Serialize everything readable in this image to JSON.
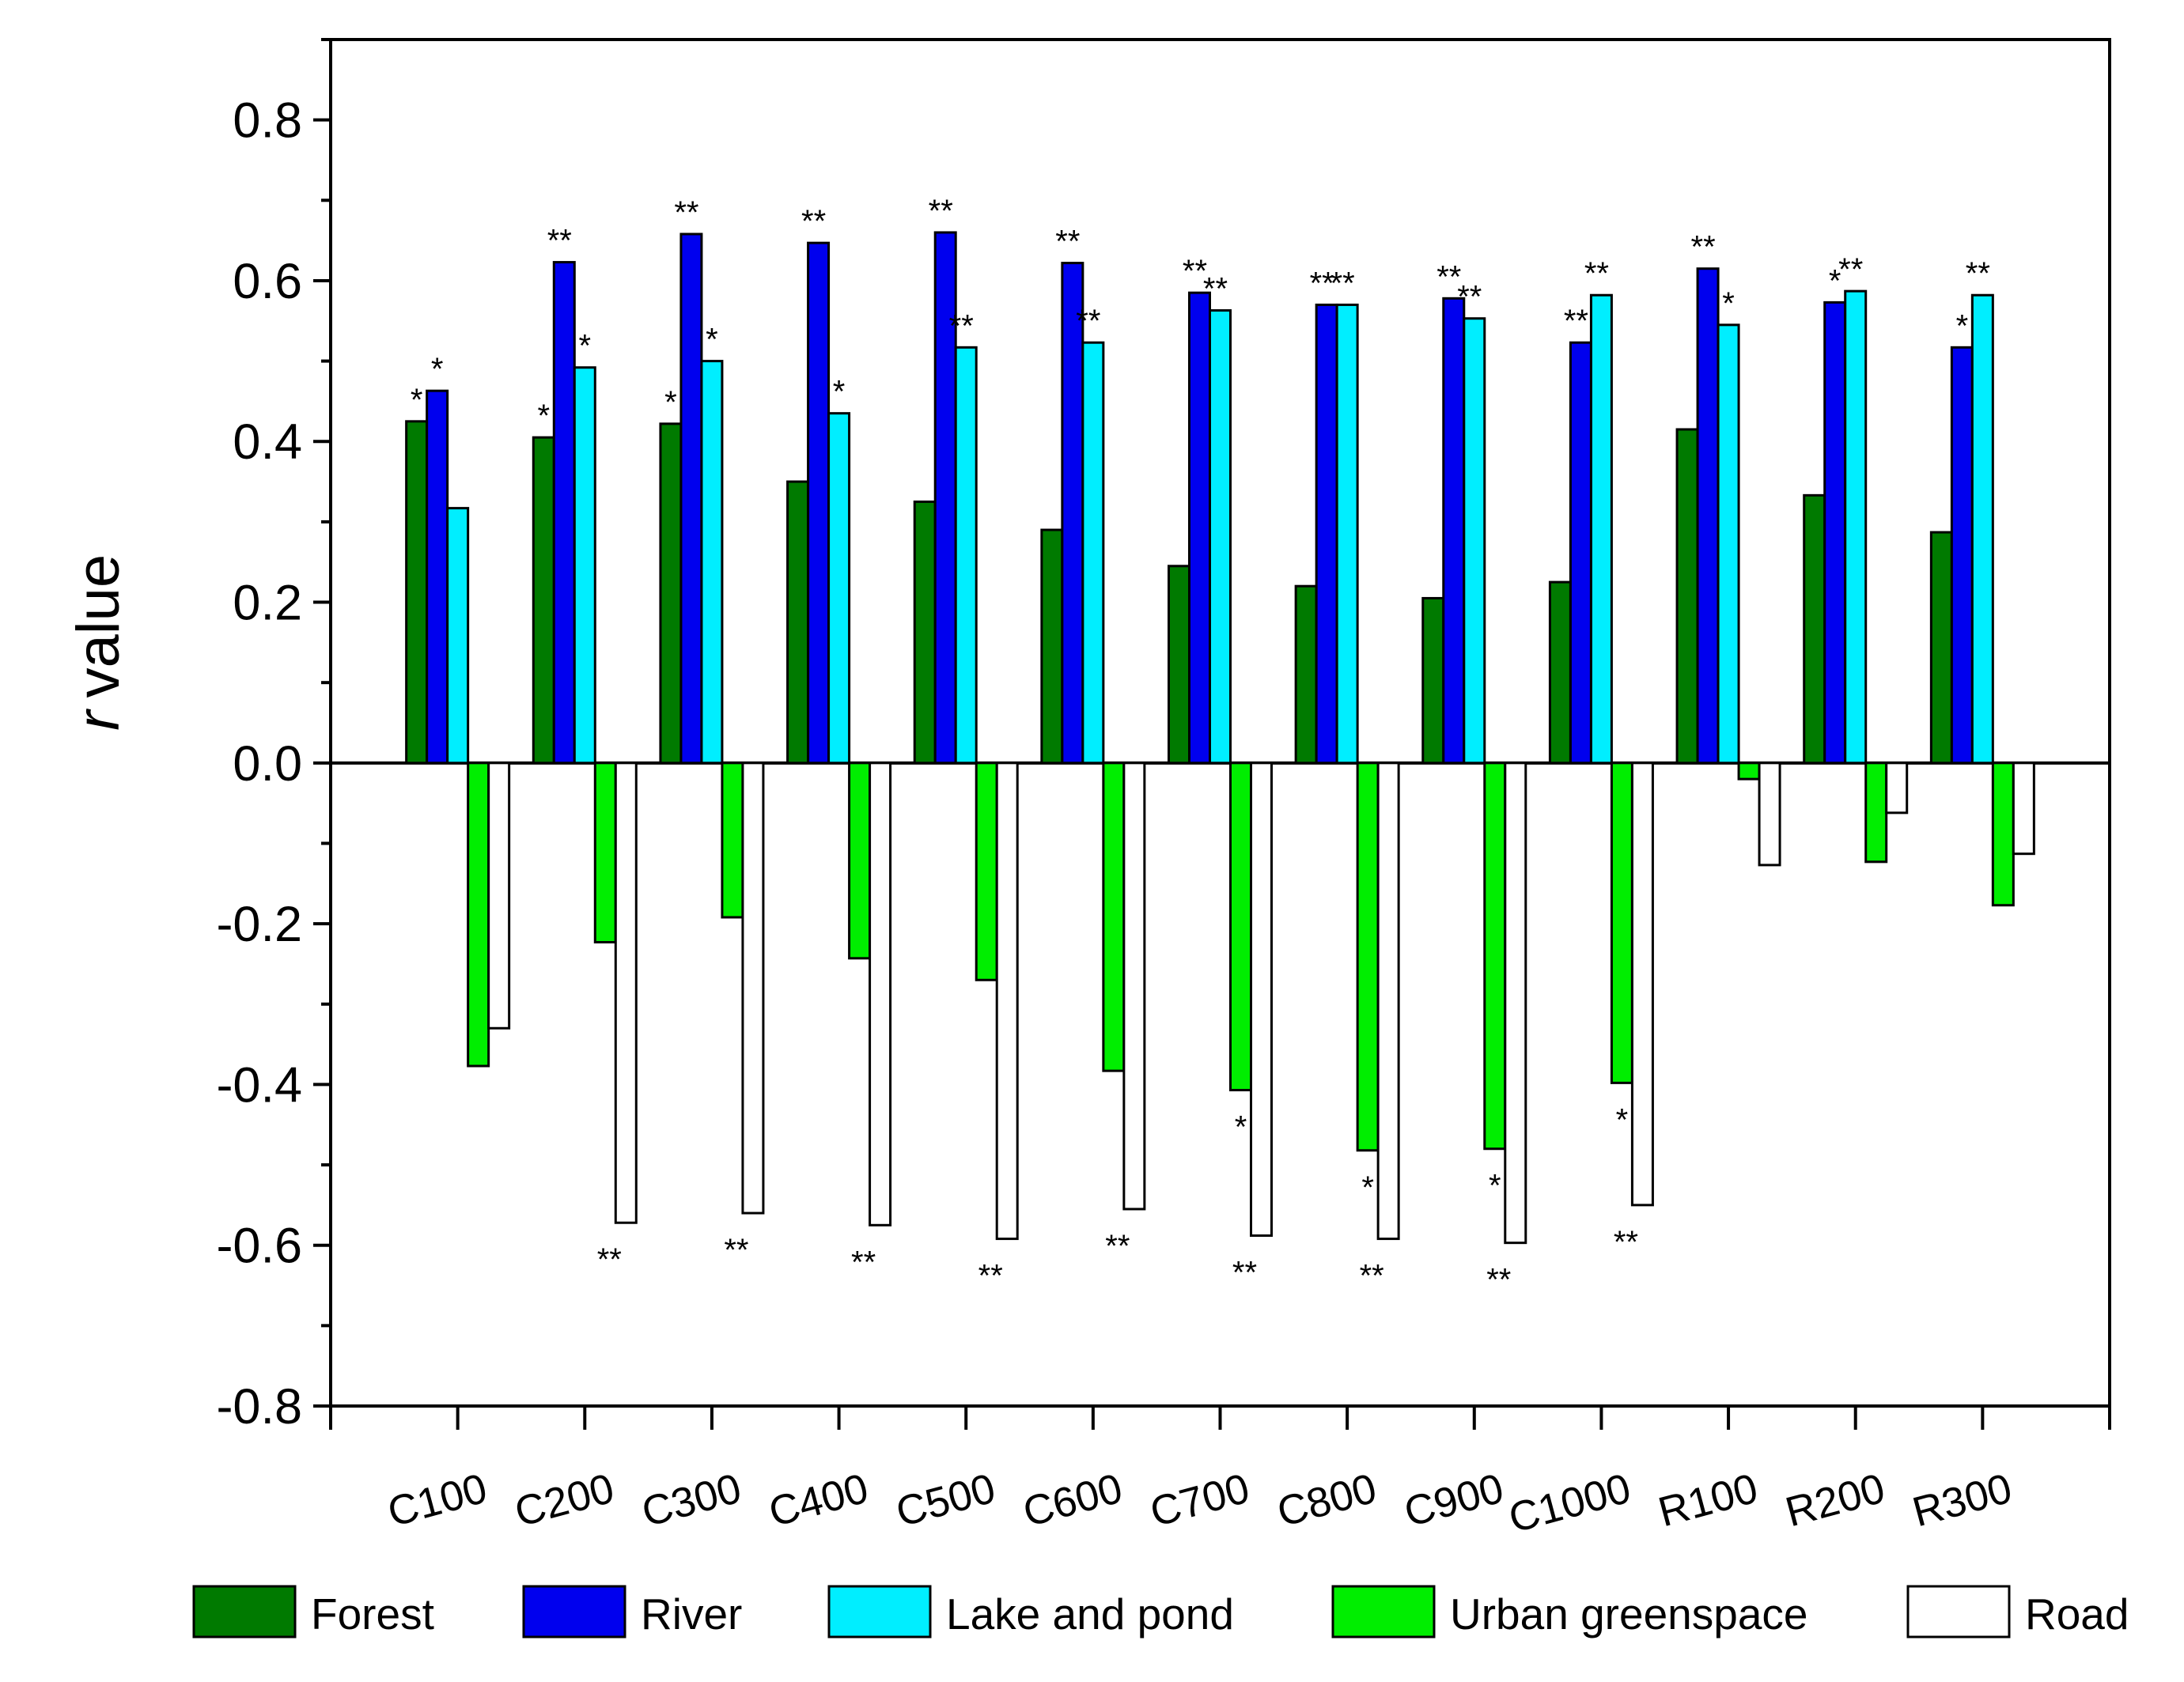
{
  "chart_data": {
    "type": "bar",
    "title": "",
    "xlabel": "",
    "ylabel": "value",
    "ylabel_italic_prefix": "r",
    "ylim": [
      -0.8,
      0.9
    ],
    "yticks": [
      "0.8",
      "0.6",
      "0.4",
      "0.2",
      "0.0",
      "-0.2",
      "-0.4",
      "-0.6",
      "-0.8"
    ],
    "ytick_values": [
      0.8,
      0.6,
      0.4,
      0.2,
      0.0,
      -0.2,
      -0.4,
      -0.6,
      -0.8
    ],
    "categories": [
      "C100",
      "C200",
      "C300",
      "C400",
      "C500",
      "C600",
      "C700",
      "C800",
      "C900",
      "C1000",
      "R100",
      "R200",
      "R300"
    ],
    "series": [
      {
        "name": "Forest",
        "color": "#007a00",
        "values": [
          0.425,
          0.405,
          0.422,
          0.35,
          0.325,
          0.29,
          0.245,
          0.22,
          0.205,
          0.225,
          0.415,
          0.333,
          0.287
        ],
        "marks": [
          "*",
          "*",
          "*",
          "",
          "",
          "",
          "",
          "",
          "",
          "",
          "",
          "",
          ""
        ]
      },
      {
        "name": "River",
        "color": "#0000ee",
        "values": [
          0.463,
          0.623,
          0.658,
          0.647,
          0.66,
          0.622,
          0.585,
          0.57,
          0.578,
          0.523,
          0.615,
          0.573,
          0.517
        ],
        "marks": [
          "*",
          "**",
          "**",
          "**",
          "**",
          "**",
          "**",
          "**",
          "**",
          "**",
          "**",
          "*",
          "*"
        ]
      },
      {
        "name": "Lake and pond",
        "color": "#00eeff",
        "values": [
          0.317,
          0.492,
          0.5,
          0.435,
          0.517,
          0.523,
          0.563,
          0.57,
          0.553,
          0.582,
          0.545,
          0.587,
          0.582
        ],
        "marks": [
          "",
          "*",
          "*",
          "*",
          "**",
          "**",
          "**",
          "**",
          "**",
          "**",
          "*",
          "**",
          "**"
        ]
      },
      {
        "name": "Urban greenspace",
        "color": "#00ee00",
        "values": [
          -0.377,
          -0.223,
          -0.192,
          -0.243,
          -0.27,
          -0.383,
          -0.407,
          -0.482,
          -0.48,
          -0.398,
          -0.02,
          -0.123,
          -0.177
        ],
        "marks": [
          "",
          "",
          "",
          "",
          "",
          "",
          "*",
          "*",
          "*",
          "*",
          "",
          "",
          ""
        ]
      },
      {
        "name": "Road",
        "color": "#ffffff",
        "values": [
          -0.33,
          -0.572,
          -0.56,
          -0.575,
          -0.592,
          -0.555,
          -0.588,
          -0.592,
          -0.597,
          -0.55,
          -0.127,
          -0.062,
          -0.113
        ],
        "marks": [
          "",
          "**",
          "**",
          "**",
          "**",
          "**",
          "**",
          "**",
          "**",
          "**",
          "",
          "",
          ""
        ]
      }
    ],
    "legend": {
      "placement": "bottom"
    }
  }
}
